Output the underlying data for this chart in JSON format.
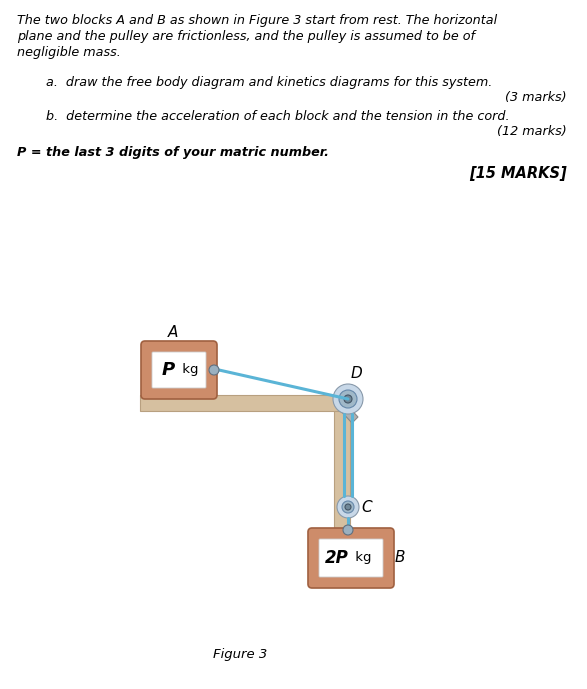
{
  "bg_color": "#ffffff",
  "text_color": "#000000",
  "text_lines": [
    "The two blocks A and B as shown in Figure 3 start from rest. The horizontal",
    "plane and the pulley are frictionless, and the pulley is assumed to be of",
    "negligible mass."
  ],
  "item_a": "a.  draw the free body diagram and kinetics diagrams for this system.",
  "marks_a": "(3 marks)",
  "item_b": "b.  determine the acceleration of each block and the tension in the cord.",
  "marks_b": "(12 marks)",
  "p_line": "P = the last 3 digits of your matric number.",
  "total_marks": "[15 MARKS]",
  "figure_label": "Figure 3",
  "block_fill": "#cd8c6a",
  "block_edge": "#a06040",
  "inner_fill": "#ffffff",
  "table_fill": "#d6c0a0",
  "table_edge": "#b8a080",
  "rope_color": "#5ab4d6",
  "bracket_fill": "#b0b0b0",
  "bracket_edge": "#888888",
  "pulley_outer": "#c8d8e8",
  "pulley_mid": "#a0b8c8",
  "pulley_ctr": "#708898",
  "conn_fill": "#9ab0c0",
  "conn_edge": "#607080"
}
